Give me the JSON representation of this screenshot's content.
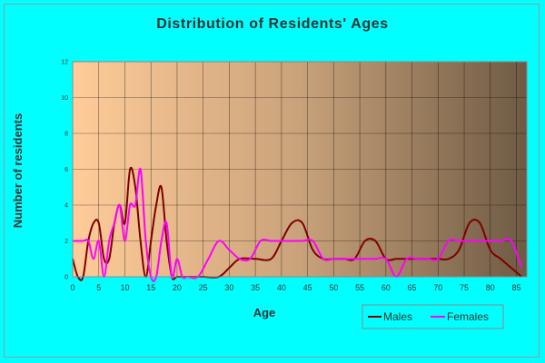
{
  "chart_data": {
    "type": "line",
    "title": "Distribution of Residents' Ages",
    "xlabel": "Age",
    "ylabel": "Number of residents",
    "xlim": [
      0,
      87
    ],
    "ylim": [
      0,
      12
    ],
    "x_ticks": [
      "0",
      "5",
      "10",
      "15",
      "20",
      "25",
      "30",
      "35",
      "40",
      "45",
      "50",
      "55",
      "60",
      "65",
      "70",
      "75",
      "80",
      "85"
    ],
    "y_ticks": [
      "0",
      "2",
      "4",
      "6",
      "8",
      "10",
      "12"
    ],
    "grid": true,
    "legend_position": "bottom-right",
    "series": [
      {
        "name": "Males",
        "color": "#800000",
        "points": [
          [
            0,
            1
          ],
          [
            1,
            0
          ],
          [
            2,
            0
          ],
          [
            3,
            2
          ],
          [
            4,
            3
          ],
          [
            5,
            3
          ],
          [
            6,
            1
          ],
          [
            7,
            1
          ],
          [
            8,
            3
          ],
          [
            9,
            4
          ],
          [
            10,
            3
          ],
          [
            11,
            6
          ],
          [
            12,
            5
          ],
          [
            13,
            2
          ],
          [
            14,
            0
          ],
          [
            15,
            2
          ],
          [
            16,
            4
          ],
          [
            17,
            5
          ],
          [
            18,
            2
          ],
          [
            19,
            0
          ],
          [
            20,
            0
          ],
          [
            22,
            0
          ],
          [
            25,
            0
          ],
          [
            28,
            0
          ],
          [
            30,
            0.5
          ],
          [
            32,
            1
          ],
          [
            35,
            1
          ],
          [
            38,
            1
          ],
          [
            40,
            2
          ],
          [
            42,
            3
          ],
          [
            44,
            3
          ],
          [
            46,
            1.5
          ],
          [
            48,
            1
          ],
          [
            50,
            1
          ],
          [
            52,
            1
          ],
          [
            54,
            1
          ],
          [
            56,
            2
          ],
          [
            58,
            2
          ],
          [
            60,
            1
          ],
          [
            62,
            1
          ],
          [
            64,
            1
          ],
          [
            66,
            1
          ],
          [
            68,
            1
          ],
          [
            70,
            1
          ],
          [
            72,
            1
          ],
          [
            74,
            1.5
          ],
          [
            76,
            3
          ],
          [
            78,
            3
          ],
          [
            80,
            1.5
          ],
          [
            82,
            1
          ],
          [
            84,
            0.5
          ],
          [
            86,
            0
          ]
        ]
      },
      {
        "name": "Females",
        "color": "#ff00ff",
        "points": [
          [
            0,
            2
          ],
          [
            1,
            2
          ],
          [
            2,
            2
          ],
          [
            3,
            2
          ],
          [
            4,
            1
          ],
          [
            5,
            2
          ],
          [
            6,
            0
          ],
          [
            7,
            2
          ],
          [
            8,
            3
          ],
          [
            9,
            4
          ],
          [
            10,
            2
          ],
          [
            11,
            4
          ],
          [
            12,
            4
          ],
          [
            13,
            6
          ],
          [
            14,
            2
          ],
          [
            15,
            0
          ],
          [
            16,
            0
          ],
          [
            17,
            2
          ],
          [
            18,
            3
          ],
          [
            19,
            0
          ],
          [
            20,
            1
          ],
          [
            21,
            0
          ],
          [
            22,
            0
          ],
          [
            24,
            0
          ],
          [
            26,
            1
          ],
          [
            28,
            2
          ],
          [
            30,
            1.5
          ],
          [
            32,
            1
          ],
          [
            34,
            1
          ],
          [
            36,
            2
          ],
          [
            38,
            2
          ],
          [
            40,
            2
          ],
          [
            42,
            2
          ],
          [
            44,
            2
          ],
          [
            46,
            2
          ],
          [
            48,
            1
          ],
          [
            50,
            1
          ],
          [
            52,
            1
          ],
          [
            54,
            1
          ],
          [
            56,
            1
          ],
          [
            58,
            1
          ],
          [
            60,
            1
          ],
          [
            62,
            0
          ],
          [
            64,
            1
          ],
          [
            66,
            1
          ],
          [
            68,
            1
          ],
          [
            70,
            1
          ],
          [
            72,
            2
          ],
          [
            74,
            2
          ],
          [
            76,
            2
          ],
          [
            78,
            2
          ],
          [
            80,
            2
          ],
          [
            82,
            2
          ],
          [
            84,
            2
          ],
          [
            86,
            0.5
          ]
        ]
      }
    ]
  },
  "colors": {
    "page_background": "#00ffff",
    "plot_gradient_left": "#ffcc99",
    "plot_gradient_right": "#6e5a44",
    "gridline": "#000000"
  }
}
